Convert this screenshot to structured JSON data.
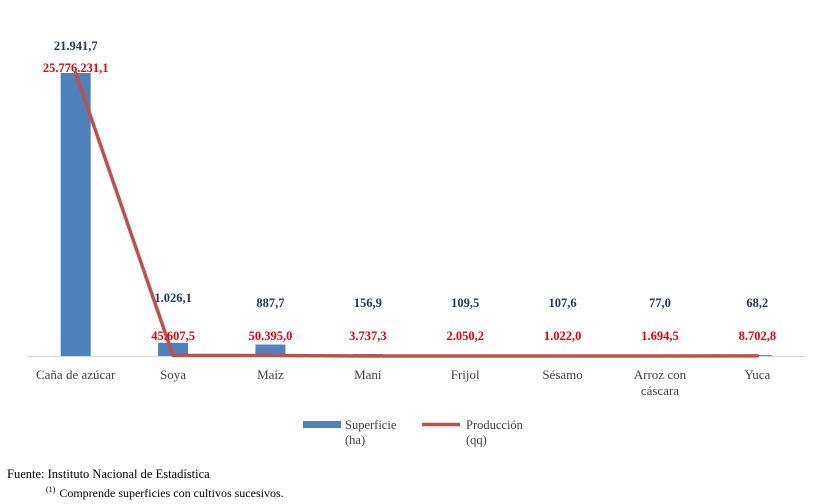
{
  "chart_data": {
    "type": "bar",
    "categories": [
      "Caña de azúcar",
      "Soya",
      "Maíz",
      "Maní",
      "Frijol",
      "Sésamo",
      [
        "Arroz con",
        "cáscara"
      ],
      "Yuca"
    ],
    "series": [
      {
        "name": "Superficie (ha)",
        "type": "bar",
        "color": "#4f81bd",
        "values": [
          21941.7,
          1026.1,
          887.7,
          156.9,
          109.5,
          107.6,
          77.0,
          68.2
        ],
        "labels": [
          "21.941,7",
          "1.026,1",
          "887,7",
          "156,9",
          "109,5",
          "107,6",
          "77,0",
          "68,2"
        ]
      },
      {
        "name": "Producción (qq)",
        "type": "line",
        "color": "#c0504d",
        "values": [
          25776231.1,
          45607.5,
          50395.0,
          3737.3,
          2050.2,
          1022.0,
          1694.5,
          8702.8
        ],
        "labels": [
          "25.776.231,1",
          "45.607,5",
          "50.395,0",
          "3.737,3",
          "2.050,2",
          "1.022,0",
          "1.694,5",
          "8.702,8"
        ]
      }
    ],
    "label_colors": {
      "bar": "#1f3864",
      "line": "#e8000b"
    },
    "legend": [
      {
        "lines": [
          "Superficie",
          "(ha)"
        ],
        "kind": "bar",
        "color": "#4f81bd"
      },
      {
        "lines": [
          "Producción",
          "(qq)"
        ],
        "kind": "line",
        "color": "#c0504d"
      }
    ],
    "legend_position": "bottom",
    "grid": false
  },
  "footer": {
    "source": "Fuente: Instituto Nacional de Estadística",
    "note_marker": "(1)",
    "note": "Comprende superficies con cultivos sucesivos."
  }
}
